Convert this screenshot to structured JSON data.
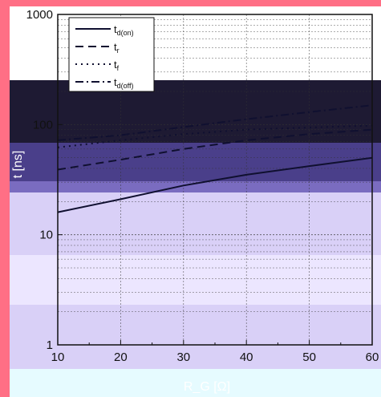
{
  "colors": {
    "page_frame": "#ff6f85",
    "bottom_strip": "#e6fbff",
    "line": "#101030",
    "grid": "#333333",
    "band_dark": "#1e1a33",
    "band_blue": "#4a3f8a",
    "band_mid": "#7a6cc0",
    "band_light": "#d9d0f7",
    "band_pale": "#ece6ff"
  },
  "chart_data": {
    "type": "line",
    "xlabel": "R_G [Ω]",
    "ylabel": "t [ns]",
    "xlim": [
      10,
      60
    ],
    "ylim": [
      1,
      1000
    ],
    "y_scale": "log",
    "x_ticks": [
      "10",
      "20",
      "30",
      "40",
      "50",
      "60"
    ],
    "y_ticks": [
      "1",
      "10",
      "100",
      "1000"
    ],
    "grid": true,
    "legend_position": "top-left",
    "x": [
      10,
      20,
      30,
      40,
      50,
      60
    ],
    "series": [
      {
        "name": "t_d(on)",
        "main": "t",
        "sub": "d(on)",
        "dash": "solid",
        "values": [
          16,
          21,
          28,
          35,
          42,
          50
        ]
      },
      {
        "name": "t_r",
        "main": "t",
        "sub": "r",
        "dash": "dashed",
        "values": [
          39,
          48,
          60,
          72,
          82,
          90
        ]
      },
      {
        "name": "t_f",
        "main": "t",
        "sub": "f",
        "dash": "dotted",
        "values": [
          62,
          72,
          82,
          90,
          94,
          98
        ]
      },
      {
        "name": "t_d(off)",
        "main": "t",
        "sub": "d(off)",
        "dash": "dashdot",
        "values": [
          72,
          80,
          95,
          112,
          130,
          150
        ]
      }
    ]
  }
}
